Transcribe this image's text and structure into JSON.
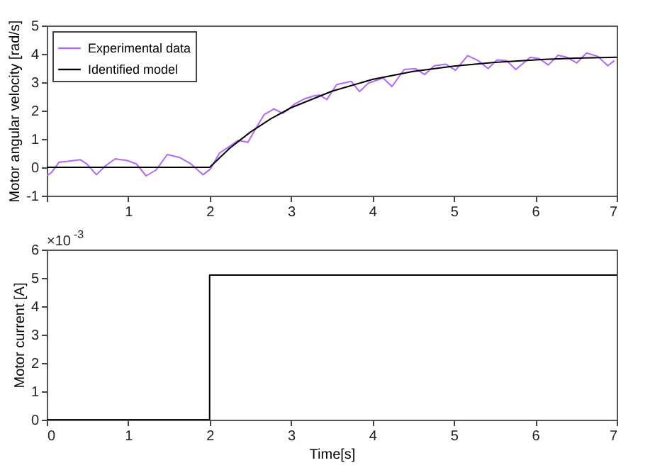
{
  "chart_data": [
    {
      "type": "line",
      "ylabel": "Motor angular velocity [rad/s]",
      "xlim": [
        0,
        7
      ],
      "xticks": [
        {
          "value": 0,
          "label": null
        },
        1,
        2,
        3,
        4,
        5,
        6,
        7
      ],
      "ylim": [
        -1,
        5
      ],
      "yticks": [
        -1,
        0,
        1,
        2,
        3,
        4,
        5
      ],
      "grid": false,
      "legend": "top left",
      "series": [
        {
          "name": "Experimental data",
          "color": "#b266ff",
          "x": [
            0,
            0.06,
            0.15,
            0.26,
            0.41,
            0.49,
            0.61,
            0.72,
            0.84,
            0.99,
            1.1,
            1.22,
            1.34,
            1.48,
            1.63,
            1.77,
            1.92,
            2.01,
            2.12,
            2.24,
            2.35,
            2.47,
            2.56,
            2.67,
            2.79,
            2.9,
            3.05,
            3.17,
            3.28,
            3.35,
            3.44,
            3.56,
            3.74,
            3.84,
            3.95,
            4.13,
            4.24,
            4.39,
            4.53,
            4.64,
            4.76,
            4.9,
            5.02,
            5.17,
            5.3,
            5.42,
            5.53,
            5.65,
            5.76,
            5.94,
            6.05,
            6.16,
            6.28,
            6.39,
            6.51,
            6.63,
            6.77,
            6.89,
            6.97
          ],
          "values": [
            -0.3,
            -0.18,
            0.18,
            0.21,
            0.27,
            0.12,
            -0.26,
            0.05,
            0.3,
            0.24,
            0.12,
            -0.3,
            -0.1,
            0.45,
            0.35,
            0.12,
            -0.26,
            -0.06,
            0.5,
            0.73,
            0.95,
            0.88,
            1.33,
            1.86,
            2.06,
            1.9,
            2.24,
            2.42,
            2.52,
            2.55,
            2.39,
            2.92,
            3.03,
            2.67,
            2.97,
            3.15,
            2.85,
            3.45,
            3.48,
            3.27,
            3.58,
            3.64,
            3.42,
            3.94,
            3.76,
            3.48,
            3.79,
            3.76,
            3.45,
            3.88,
            3.83,
            3.61,
            3.95,
            3.88,
            3.68,
            4.03,
            3.91,
            3.58,
            3.76
          ]
        },
        {
          "name": "Identified model",
          "color": "#000000",
          "x": [
            0,
            2,
            2.25,
            2.5,
            2.75,
            3,
            3.5,
            4,
            4.5,
            5,
            5.5,
            6,
            6.5,
            7
          ],
          "values": [
            0,
            0,
            0.68,
            1.24,
            1.71,
            2.1,
            2.68,
            3.1,
            3.38,
            3.57,
            3.7,
            3.79,
            3.85,
            3.88
          ]
        }
      ]
    },
    {
      "type": "step",
      "xlabel": "Time[s]",
      "ylabel": "Motor current [A]",
      "xlim": [
        0,
        7
      ],
      "xticks": [
        0,
        1,
        2,
        3,
        4,
        5,
        6,
        7
      ],
      "ylim": [
        0,
        6
      ],
      "yticks": [
        0,
        1,
        2,
        3,
        4,
        5,
        6
      ],
      "grid": false,
      "legend": false,
      "annotations": [
        "×10$^{-3}$"
      ],
      "series": [
        {
          "color": "#000000",
          "x": [
            0,
            2,
            7
          ],
          "values": [
            0,
            5.1,
            5.1
          ]
        }
      ]
    }
  ]
}
